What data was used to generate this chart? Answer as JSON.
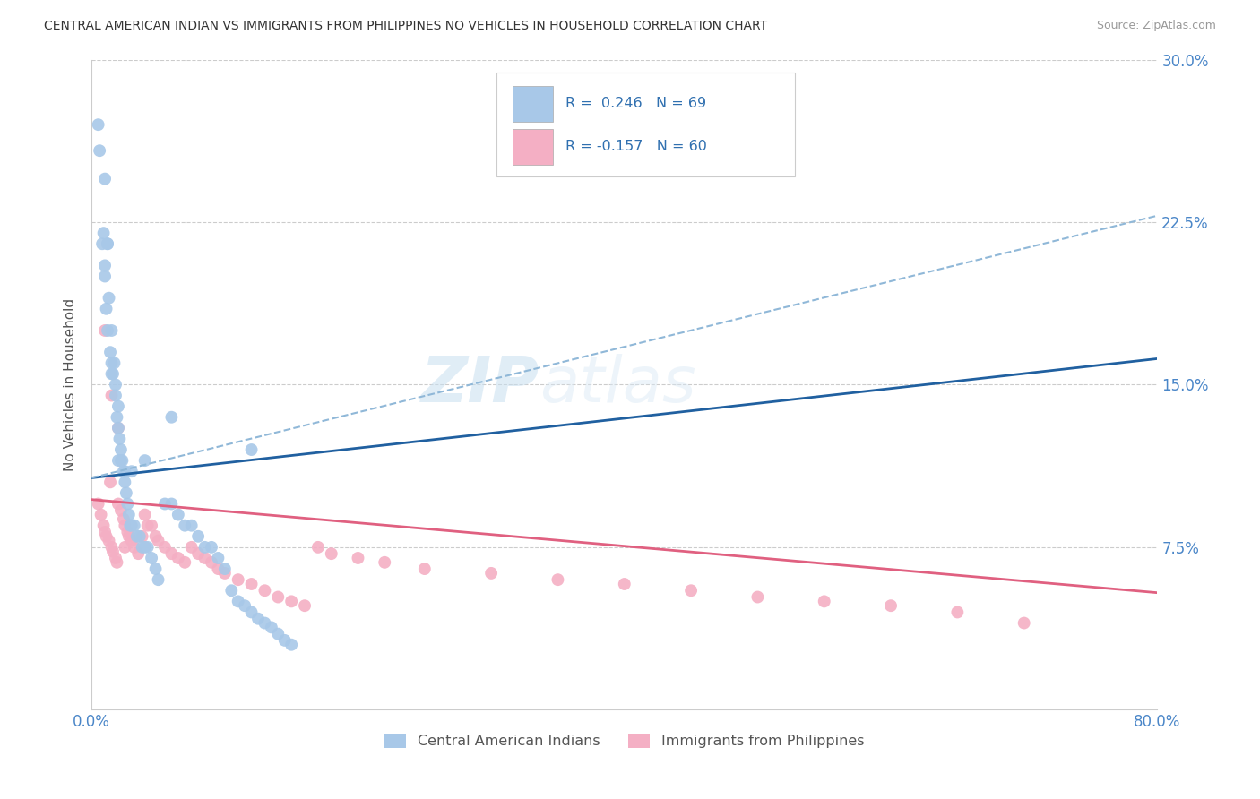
{
  "title": "CENTRAL AMERICAN INDIAN VS IMMIGRANTS FROM PHILIPPINES NO VEHICLES IN HOUSEHOLD CORRELATION CHART",
  "source": "Source: ZipAtlas.com",
  "ylabel": "No Vehicles in Household",
  "xlim": [
    0.0,
    0.8
  ],
  "ylim": [
    0.0,
    0.3
  ],
  "xticks": [
    0.0,
    0.1,
    0.2,
    0.3,
    0.4,
    0.5,
    0.6,
    0.7,
    0.8
  ],
  "xticklabels": [
    "0.0%",
    "",
    "",
    "",
    "",
    "",
    "",
    "",
    "80.0%"
  ],
  "yticks": [
    0.0,
    0.075,
    0.15,
    0.225,
    0.3
  ],
  "yticklabels": [
    "",
    "7.5%",
    "15.0%",
    "22.5%",
    "30.0%"
  ],
  "blue_color": "#a8c8e8",
  "pink_color": "#f4afc4",
  "blue_line_color": "#2060a0",
  "pink_line_color": "#e06080",
  "dashed_line_color": "#90b8d8",
  "legend_label1": "Central American Indians",
  "legend_label2": "Immigrants from Philippines",
  "background_color": "#ffffff",
  "blue_scatter_x": [
    0.005,
    0.006,
    0.008,
    0.009,
    0.01,
    0.01,
    0.011,
    0.012,
    0.012,
    0.013,
    0.014,
    0.015,
    0.015,
    0.016,
    0.017,
    0.018,
    0.018,
    0.019,
    0.02,
    0.02,
    0.021,
    0.022,
    0.022,
    0.023,
    0.024,
    0.025,
    0.026,
    0.027,
    0.028,
    0.029,
    0.03,
    0.032,
    0.034,
    0.036,
    0.038,
    0.04,
    0.042,
    0.045,
    0.048,
    0.05,
    0.055,
    0.06,
    0.065,
    0.07,
    0.075,
    0.08,
    0.085,
    0.09,
    0.095,
    0.1,
    0.105,
    0.11,
    0.115,
    0.12,
    0.125,
    0.13,
    0.135,
    0.14,
    0.145,
    0.15,
    0.01,
    0.012,
    0.015,
    0.02,
    0.025,
    0.03,
    0.04,
    0.06,
    0.12
  ],
  "blue_scatter_y": [
    0.27,
    0.258,
    0.215,
    0.22,
    0.2,
    0.205,
    0.185,
    0.175,
    0.215,
    0.19,
    0.165,
    0.175,
    0.16,
    0.155,
    0.16,
    0.15,
    0.145,
    0.135,
    0.13,
    0.14,
    0.125,
    0.12,
    0.115,
    0.115,
    0.11,
    0.105,
    0.1,
    0.095,
    0.09,
    0.085,
    0.085,
    0.085,
    0.08,
    0.08,
    0.075,
    0.075,
    0.075,
    0.07,
    0.065,
    0.06,
    0.095,
    0.095,
    0.09,
    0.085,
    0.085,
    0.08,
    0.075,
    0.075,
    0.07,
    0.065,
    0.055,
    0.05,
    0.048,
    0.045,
    0.042,
    0.04,
    0.038,
    0.035,
    0.032,
    0.03,
    0.245,
    0.215,
    0.155,
    0.115,
    0.11,
    0.11,
    0.115,
    0.135,
    0.12
  ],
  "pink_scatter_x": [
    0.005,
    0.007,
    0.009,
    0.01,
    0.011,
    0.013,
    0.014,
    0.015,
    0.016,
    0.018,
    0.019,
    0.02,
    0.022,
    0.024,
    0.025,
    0.027,
    0.028,
    0.03,
    0.032,
    0.035,
    0.038,
    0.04,
    0.042,
    0.045,
    0.048,
    0.05,
    0.055,
    0.06,
    0.065,
    0.07,
    0.075,
    0.08,
    0.085,
    0.09,
    0.095,
    0.1,
    0.11,
    0.12,
    0.13,
    0.14,
    0.15,
    0.16,
    0.17,
    0.18,
    0.2,
    0.22,
    0.25,
    0.3,
    0.35,
    0.4,
    0.45,
    0.5,
    0.55,
    0.6,
    0.65,
    0.7,
    0.01,
    0.015,
    0.02,
    0.025
  ],
  "pink_scatter_y": [
    0.095,
    0.09,
    0.085,
    0.082,
    0.08,
    0.078,
    0.105,
    0.075,
    0.073,
    0.07,
    0.068,
    0.095,
    0.092,
    0.088,
    0.085,
    0.082,
    0.08,
    0.078,
    0.075,
    0.072,
    0.08,
    0.09,
    0.085,
    0.085,
    0.08,
    0.078,
    0.075,
    0.072,
    0.07,
    0.068,
    0.075,
    0.072,
    0.07,
    0.068,
    0.065,
    0.063,
    0.06,
    0.058,
    0.055,
    0.052,
    0.05,
    0.048,
    0.075,
    0.072,
    0.07,
    0.068,
    0.065,
    0.063,
    0.06,
    0.058,
    0.055,
    0.052,
    0.05,
    0.048,
    0.045,
    0.04,
    0.175,
    0.145,
    0.13,
    0.075
  ],
  "blue_line_x": [
    0.0,
    0.8
  ],
  "blue_line_y": [
    0.107,
    0.162
  ],
  "pink_line_x": [
    0.0,
    0.8
  ],
  "pink_line_y": [
    0.097,
    0.054
  ],
  "dashed_line_x": [
    0.0,
    0.8
  ],
  "dashed_line_y": [
    0.107,
    0.228
  ]
}
